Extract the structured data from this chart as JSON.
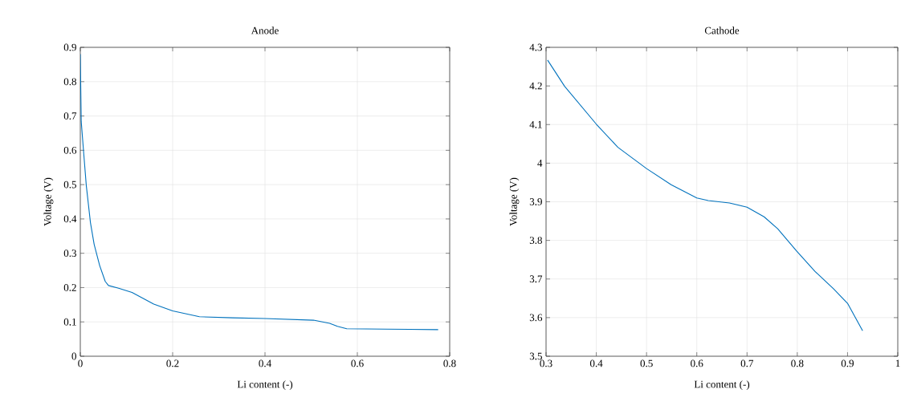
{
  "chart_data": [
    {
      "type": "line",
      "title": "Anode",
      "xlabel": "Li content (-)",
      "ylabel": "Voltage (V)",
      "color": "#0072bd",
      "grid": true,
      "xlim": [
        0,
        0.8
      ],
      "ylim": [
        0,
        0.9
      ],
      "xticks": [
        0,
        0.2,
        0.4,
        0.6,
        0.8
      ],
      "yticks": [
        0,
        0.1,
        0.2,
        0.3,
        0.4,
        0.5,
        0.6,
        0.7,
        0.8,
        0.9
      ],
      "x": [
        0,
        0.002,
        0.007,
        0.013,
        0.022,
        0.03,
        0.042,
        0.054,
        0.061,
        0.083,
        0.112,
        0.159,
        0.2,
        0.258,
        0.33,
        0.4,
        0.505,
        0.54,
        0.557,
        0.577,
        0.662,
        0.775
      ],
      "values": [
        0.88,
        0.684,
        0.598,
        0.497,
        0.389,
        0.326,
        0.264,
        0.218,
        0.206,
        0.198,
        0.186,
        0.152,
        0.132,
        0.115,
        0.112,
        0.11,
        0.105,
        0.096,
        0.087,
        0.08,
        0.079,
        0.0775
      ]
    },
    {
      "type": "line",
      "title": "Cathode",
      "xlabel": "Li content (-)",
      "ylabel": "Voltage (V)",
      "color": "#0072bd",
      "grid": true,
      "xlim": [
        0.3,
        1
      ],
      "ylim": [
        3.5,
        4.3
      ],
      "xticks": [
        0.3,
        0.4,
        0.5,
        0.6,
        0.7,
        0.8,
        0.9,
        1
      ],
      "yticks": [
        3.5,
        3.6,
        3.7,
        3.8,
        3.9,
        4,
        4.1,
        4.2,
        4.3
      ],
      "x": [
        0.303,
        0.337,
        0.4,
        0.443,
        0.5,
        0.549,
        0.6,
        0.623,
        0.665,
        0.7,
        0.734,
        0.761,
        0.799,
        0.835,
        0.872,
        0.9,
        0.916,
        0.93
      ],
      "values": [
        4.267,
        4.199,
        4.101,
        4.041,
        3.986,
        3.944,
        3.91,
        3.903,
        3.897,
        3.886,
        3.861,
        3.83,
        3.772,
        3.72,
        3.675,
        3.637,
        3.599,
        3.566
      ]
    }
  ]
}
